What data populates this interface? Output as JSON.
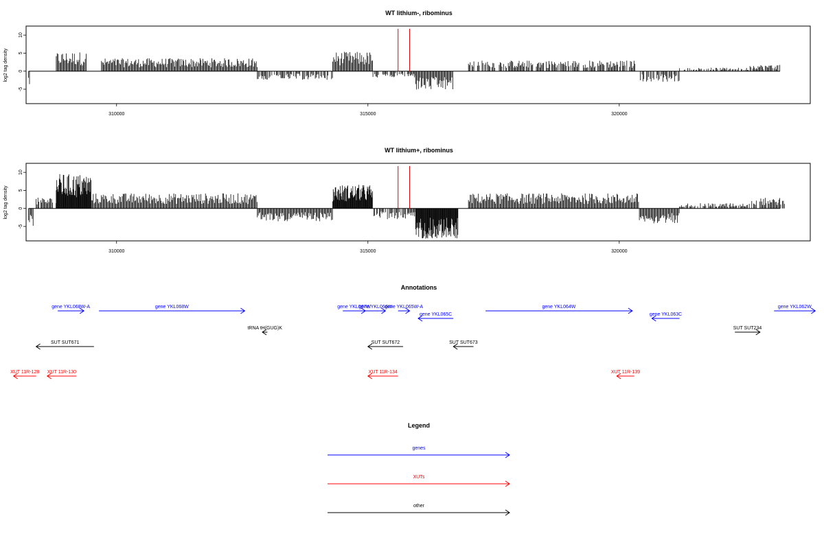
{
  "chart_data": [
    {
      "type": "bar",
      "title": "WT lithium-, ribominus",
      "ylabel": "log2 tag density",
      "xlim": [
        308200,
        323800
      ],
      "ylim": [
        -9,
        12.5
      ],
      "y_ticks": [
        -5,
        0,
        5,
        10
      ],
      "x_ticks": [
        310000,
        315000,
        320000
      ],
      "x_tick_labels": [
        "310000",
        "315000",
        "320000"
      ],
      "grid": false,
      "signal_regions": [
        {
          "start": 308250,
          "end": 308280,
          "level": -3
        },
        {
          "start": 308800,
          "end": 309400,
          "level": 4.5
        },
        {
          "start": 309700,
          "end": 312800,
          "level": 3
        },
        {
          "start": 312800,
          "end": 314300,
          "level": -2
        },
        {
          "start": 314300,
          "end": 315100,
          "level": 4.5
        },
        {
          "start": 315100,
          "end": 315950,
          "level": -1.5
        },
        {
          "start": 315950,
          "end": 316700,
          "level": -4.5
        },
        {
          "start": 317000,
          "end": 320400,
          "level": 2.5
        },
        {
          "start": 320400,
          "end": 321200,
          "level": -2.5
        },
        {
          "start": 321200,
          "end": 322600,
          "level": 0.8
        },
        {
          "start": 322600,
          "end": 323200,
          "level": 1.5
        }
      ],
      "marker_positions": [
        315600,
        315830
      ],
      "marker_color": "#e00000"
    },
    {
      "type": "bar",
      "title": "WT lithium+, ribominus",
      "ylabel": "log2 tag density",
      "xlim": [
        308200,
        323800
      ],
      "ylim": [
        -9,
        12.5
      ],
      "y_ticks": [
        -5,
        0,
        5,
        10
      ],
      "x_ticks": [
        310000,
        315000,
        320000
      ],
      "x_tick_labels": [
        "310000",
        "315000",
        "320000"
      ],
      "grid": false,
      "signal_regions": [
        {
          "start": 308250,
          "end": 308350,
          "level": -5
        },
        {
          "start": 308400,
          "end": 308800,
          "level": 2.5
        },
        {
          "start": 308800,
          "end": 309500,
          "level": 8
        },
        {
          "start": 309500,
          "end": 312800,
          "level": 3.5
        },
        {
          "start": 312800,
          "end": 314300,
          "level": -3
        },
        {
          "start": 314300,
          "end": 315100,
          "level": 5.5
        },
        {
          "start": 315100,
          "end": 315950,
          "level": -2.5
        },
        {
          "start": 315950,
          "end": 316800,
          "level": -7
        },
        {
          "start": 317000,
          "end": 320400,
          "level": 3.5
        },
        {
          "start": 320400,
          "end": 321200,
          "level": -3.5
        },
        {
          "start": 321200,
          "end": 322600,
          "level": 1.2
        },
        {
          "start": 322600,
          "end": 323300,
          "level": 2.5
        }
      ],
      "marker_positions": [
        315600,
        315830
      ],
      "marker_color": "#e00000"
    }
  ],
  "annotations": {
    "title": "Annotations",
    "xlim": [
      308200,
      323800
    ],
    "colors": {
      "genes": "#0000ff",
      "XUTs": "#ff0000",
      "other": "#000000"
    },
    "features": [
      {
        "label": "gene YKL068W-A",
        "start": 308830,
        "end": 309350,
        "strand": "+",
        "cls": "genes",
        "row": 0
      },
      {
        "label": "gene YKL068W",
        "start": 309650,
        "end": 312550,
        "strand": "+",
        "cls": "genes",
        "row": 0
      },
      {
        "label": "gene YKL067W",
        "start": 314500,
        "end": 314950,
        "strand": "+",
        "cls": "genes",
        "row": 0
      },
      {
        "label": "gene YKL066W",
        "start": 314950,
        "end": 315350,
        "strand": "+",
        "cls": "genes",
        "row": 0
      },
      {
        "label": "gene YKL065W-A",
        "start": 315600,
        "end": 315830,
        "strand": "+",
        "cls": "genes",
        "row": 0
      },
      {
        "label": "gene YKL065C",
        "start": 316000,
        "end": 316700,
        "strand": "-",
        "cls": "genes",
        "row": 1
      },
      {
        "label": "gene YKL064W",
        "start": 317340,
        "end": 320260,
        "strand": "+",
        "cls": "genes",
        "row": 0
      },
      {
        "label": "gene YKL063C",
        "start": 320650,
        "end": 321200,
        "strand": "-",
        "cls": "genes",
        "row": 1
      },
      {
        "label": "gene YKL062W",
        "start": 323080,
        "end": 323900,
        "strand": "+",
        "cls": "genes",
        "row": 0
      },
      {
        "label": "tRNA tH(GUG)K",
        "start": 312900,
        "end": 313000,
        "strand": "-",
        "cls": "other",
        "row": 2
      },
      {
        "label": "SUT SUT671",
        "start": 308400,
        "end": 309550,
        "strand": "-",
        "cls": "other",
        "row": 3
      },
      {
        "label": "SUT SUT672",
        "start": 315000,
        "end": 315700,
        "strand": "-",
        "cls": "other",
        "row": 3
      },
      {
        "label": "SUT SUT673",
        "start": 316700,
        "end": 317100,
        "strand": "-",
        "cls": "other",
        "row": 3
      },
      {
        "label": "SUT SUT234",
        "start": 322300,
        "end": 322800,
        "strand": "+",
        "cls": "other",
        "row": 2
      },
      {
        "label": "XUT 11R-128",
        "start": 307950,
        "end": 308400,
        "strand": "-",
        "cls": "XUTs",
        "row": 4
      },
      {
        "label": "XUT 11R-130",
        "start": 308620,
        "end": 309200,
        "strand": "-",
        "cls": "XUTs",
        "row": 4
      },
      {
        "label": "XUT 11R-134",
        "start": 315000,
        "end": 315600,
        "strand": "-",
        "cls": "XUTs",
        "row": 4
      },
      {
        "label": "XUT 11R-139",
        "start": 319950,
        "end": 320300,
        "strand": "-",
        "cls": "XUTs",
        "row": 4
      }
    ]
  },
  "legend": {
    "title": "Legend",
    "entries": [
      {
        "label": "genes",
        "color": "#0000ff"
      },
      {
        "label": "XUTs",
        "color": "#ff0000"
      },
      {
        "label": "other",
        "color": "#000000"
      }
    ]
  }
}
